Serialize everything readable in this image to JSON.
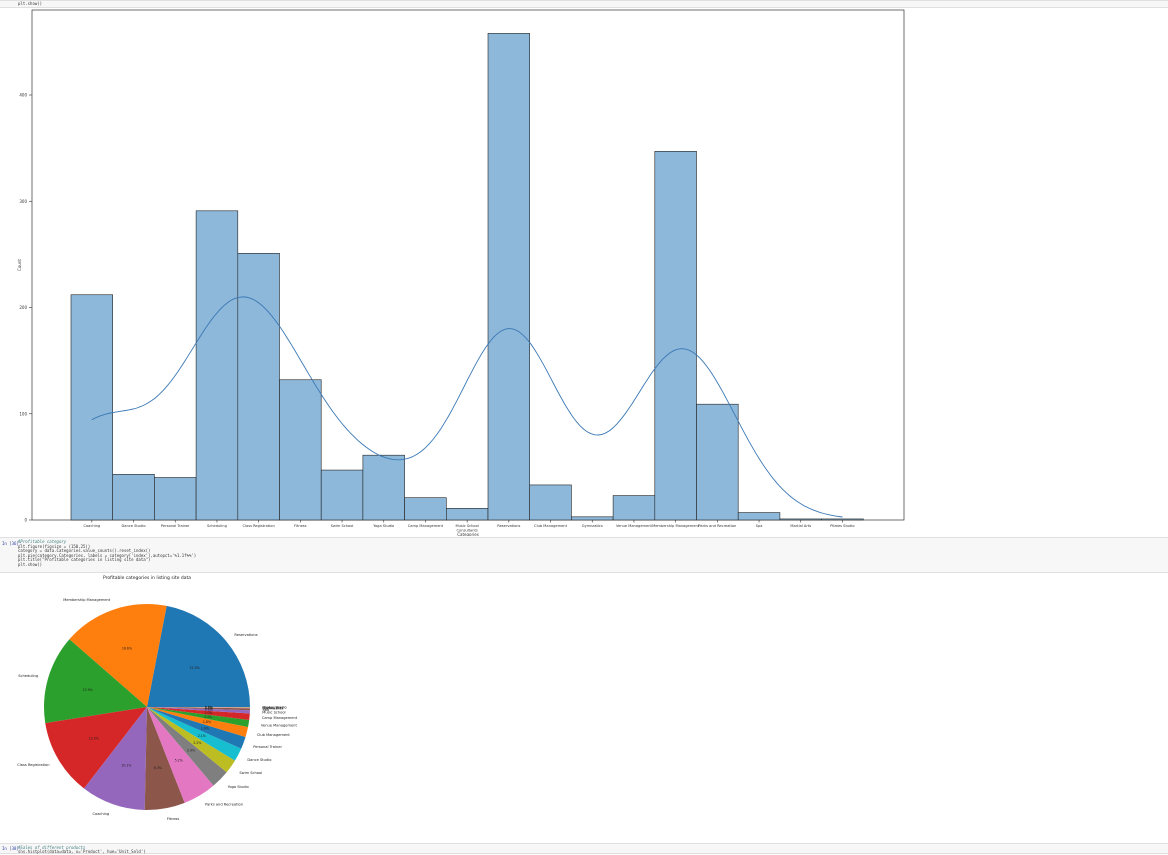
{
  "cells": {
    "top_code_line": "plt.show()",
    "pie_cell": {
      "prompt": "In [36]:",
      "code_lines": [
        "#Profitable category",
        "plt.figure(figsize = (150,25))",
        "category = data.Categories.value_counts().reset_index()",
        "plt.pie(category.Categories, labels = category['index'],autopct='%1.1f%%')",
        "plt.title(\"Profitable categories in listing site data\")",
        "plt.show()"
      ]
    },
    "bottom_cell": {
      "prompt": "In [38]:",
      "code_lines": [
        "#Sales of different products",
        "sns.histplot(data=data, x='Product', hue='Unit_Sold')"
      ]
    }
  },
  "chart_data": [
    {
      "type": "bar",
      "title": "",
      "xlabel": "Categories",
      "ylabel": "Count",
      "ylim": [
        0,
        480
      ],
      "yticks": [
        0,
        100,
        200,
        300,
        400
      ],
      "categories": [
        "Coaching",
        "Dance Studio",
        "Personal Trainer",
        "Scheduling",
        "Class Registration",
        "Fitness",
        "Swim School",
        "Yoga Studio",
        "Camp Management",
        "Music School / Consultants",
        "Reservations",
        "Club Management",
        "Gymnastics",
        "Venue Management",
        "Membership Management",
        "Parks and Recreation",
        "Spa",
        "Martial Arts",
        "Pilates Studio"
      ],
      "values": [
        212,
        43,
        40,
        291,
        251,
        132,
        47,
        61,
        21,
        11,
        458,
        33,
        3,
        23,
        347,
        109,
        7,
        1,
        1
      ],
      "kde": true,
      "color": "#8db8da",
      "line_color": "#3a78b5"
    },
    {
      "type": "pie",
      "title": "Profitable categories in listing site data",
      "slices": [
        {
          "label": "Reservations",
          "value": 21.9,
          "pct": "21.9%",
          "color": "#1f77b4"
        },
        {
          "label": "Membership Management",
          "value": 16.6,
          "pct": "16.6%",
          "color": "#ff7f0e"
        },
        {
          "label": "Scheduling",
          "value": 13.9,
          "pct": "13.9%",
          "color": "#2ca02c"
        },
        {
          "label": "Class Registration",
          "value": 12.0,
          "pct": "12.0%",
          "color": "#d62728"
        },
        {
          "label": "Coaching",
          "value": 10.1,
          "pct": "10.1%",
          "color": "#9467bd"
        },
        {
          "label": "Fitness",
          "value": 6.3,
          "pct": "6.3%",
          "color": "#8c564b"
        },
        {
          "label": "Parks and Recreation",
          "value": 5.2,
          "pct": "5.2%",
          "color": "#e377c2"
        },
        {
          "label": "Yoga Studio",
          "value": 2.9,
          "pct": "2.9%",
          "color": "#7f7f7f"
        },
        {
          "label": "Swim School",
          "value": 2.2,
          "pct": "2.2%",
          "color": "#bcbd22"
        },
        {
          "label": "Dance Studio",
          "value": 2.1,
          "pct": "2.1%",
          "color": "#17becf"
        },
        {
          "label": "Personal Trainer",
          "value": 1.9,
          "pct": "1.9%",
          "color": "#1f77b4"
        },
        {
          "label": "Club Management",
          "value": 1.6,
          "pct": "1.6%",
          "color": "#ff7f0e"
        },
        {
          "label": "Venue Management",
          "value": 1.1,
          "pct": "1.1%",
          "color": "#2ca02c"
        },
        {
          "label": "Camp Management",
          "value": 1.0,
          "pct": "1.0%",
          "color": "#d62728"
        },
        {
          "label": "Music School",
          "value": 0.5,
          "pct": "0.5%",
          "color": "#9467bd"
        },
        {
          "label": "Spa",
          "value": 0.3,
          "pct": "0.3%",
          "color": "#8c564b"
        },
        {
          "label": "Gymnastics",
          "value": 0.1,
          "pct": "0.1%",
          "color": "#e377c2"
        },
        {
          "label": "Martial Arts",
          "value": 0.05,
          "pct": "0.0%",
          "color": "#7f7f7f"
        },
        {
          "label": "Pilates Studio",
          "value": 0.05,
          "pct": "0.0%",
          "color": "#bcbd22"
        }
      ]
    }
  ]
}
